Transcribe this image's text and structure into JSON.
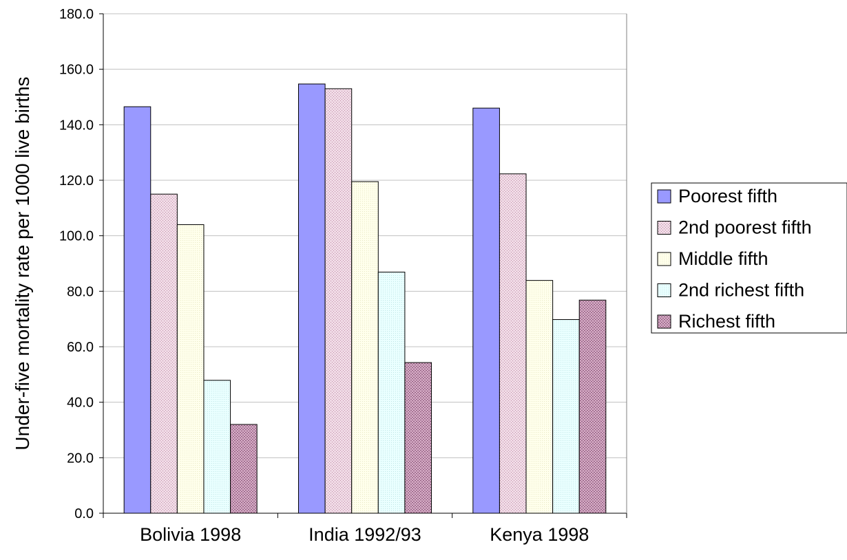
{
  "chart_data": {
    "type": "bar",
    "title": "",
    "xlabel": "",
    "ylabel": "Under-five mortality rate per 1000 live births",
    "categories": [
      "Bolivia 1998",
      "India 1992/93",
      "Kenya 1998"
    ],
    "ylim": [
      0,
      180
    ],
    "ytick_labels": [
      "0.0",
      "20.0",
      "40.0",
      "60.0",
      "80.0",
      "100.0",
      "120.0",
      "140.0",
      "160.0",
      "180.0"
    ],
    "grid": true,
    "legend_position": "right",
    "series": [
      {
        "name": "Poorest fifth",
        "values": [
          146.5,
          154.7,
          146.0
        ],
        "color": "#9999ff",
        "pattern": "solid"
      },
      {
        "name": "2nd poorest fifth",
        "values": [
          115.0,
          153.0,
          122.3
        ],
        "color": "#e6c6d6",
        "pattern": "dots"
      },
      {
        "name": "Middle fifth",
        "values": [
          104.0,
          119.5,
          83.9
        ],
        "color": "#ffffe6",
        "pattern": "fine"
      },
      {
        "name": "2nd richest fifth",
        "values": [
          47.9,
          86.9,
          69.8
        ],
        "color": "#e6ffff",
        "pattern": "fine"
      },
      {
        "name": "Richest fifth",
        "values": [
          32.0,
          54.3,
          76.8
        ],
        "color": "#b98aa8",
        "pattern": "dots"
      }
    ]
  }
}
